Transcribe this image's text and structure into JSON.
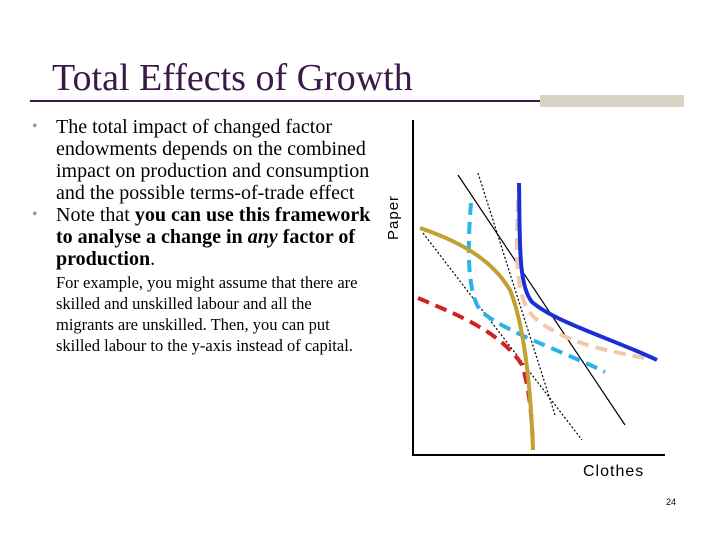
{
  "slide": {
    "title": "Total Effects of Growth",
    "page_number": "24"
  },
  "bullets": [
    {
      "parts": [
        {
          "text": "The total impact of changed factor endowments depends on the combined impact on production and consumption and the possible terms-of-trade effect"
        }
      ]
    },
    {
      "parts": [
        {
          "text": "Note that ",
          "style": "normal"
        },
        {
          "text": "you can use this framework to analyse a change in ",
          "style": "bold"
        },
        {
          "text": "any",
          "style": "bold-italic"
        },
        {
          "text": " factor of production",
          "style": "bold"
        },
        {
          "text": ". ",
          "style": "normal"
        },
        {
          "text": "For example, you might assume that there are skilled and unskilled labour and all the migrants are unskilled. Then, you can put skilled labour to the y-axis instead of capital.",
          "style": "small"
        }
      ]
    }
  ],
  "diagram": {
    "y_axis_label": "Paper",
    "x_axis_label": "Clothes",
    "colors": {
      "axis": "#000000",
      "blue_curve": "#1a2fd6",
      "peach_dashed": "#f2c9a8",
      "gold_curve": "#c2a032",
      "cyan_dashed": "#2ab4e6",
      "red_dashed": "#d42020",
      "terms_of_trade_lines": "#000000"
    }
  }
}
